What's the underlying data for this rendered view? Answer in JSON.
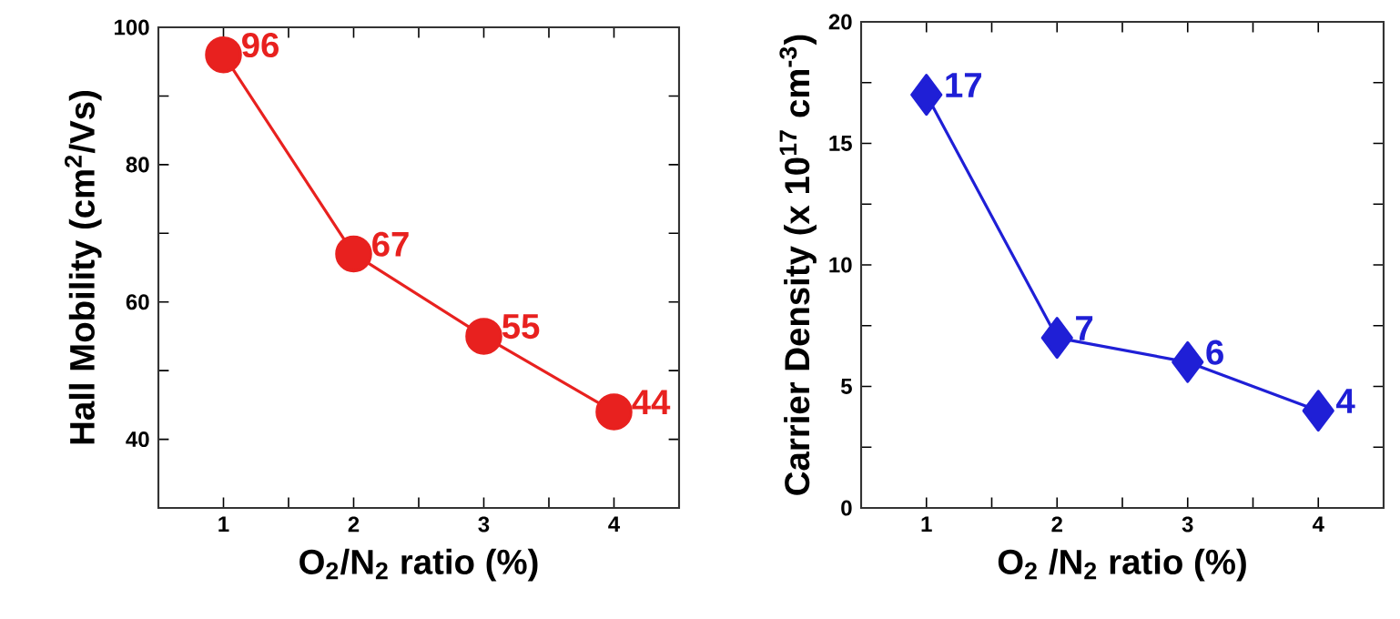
{
  "chart_data": [
    {
      "type": "line",
      "ylabel": "Hall Mobility (cm$^{2}$/Vs)",
      "xlabel": "O$_{2}$/N$_{2}$ ratio (%)",
      "x": [
        1,
        2,
        3,
        4
      ],
      "xlim": [
        0.5,
        4.5
      ],
      "xticks": [
        1,
        2,
        3,
        4,
        {
          "value": 1.5,
          "label": null
        },
        {
          "value": 2.5,
          "label": null
        },
        {
          "value": 3.5,
          "label": null
        }
      ],
      "ylim": [
        30,
        100
      ],
      "yticks": [
        40,
        60,
        80,
        100,
        {
          "value": 50,
          "label": null
        },
        {
          "value": 70,
          "label": null
        },
        {
          "value": 90,
          "label": null
        }
      ],
      "marker": "circle",
      "data_labels": true,
      "series": [
        {
          "color": "#e8211f",
          "values": [
            96,
            67,
            55,
            44
          ]
        }
      ]
    },
    {
      "type": "line",
      "ylabel": "Carrier Density (x 10$^{17}$ cm$^{-3}$)",
      "xlabel": "O$_{2}$ /N$_{2}$  ratio (%)",
      "x": [
        1,
        2,
        3,
        4
      ],
      "xlim": [
        0.5,
        4.5
      ],
      "xticks": [
        1,
        2,
        3,
        4,
        {
          "value": 1.5,
          "label": null
        },
        {
          "value": 2.5,
          "label": null
        },
        {
          "value": 3.5,
          "label": null
        }
      ],
      "ylim": [
        0,
        20
      ],
      "yticks": [
        0,
        5,
        10,
        15,
        20,
        {
          "value": 2.5,
          "label": null
        },
        {
          "value": 7.5,
          "label": null
        },
        {
          "value": 12.5,
          "label": null
        },
        {
          "value": 17.5,
          "label": null
        }
      ],
      "marker": "diamond",
      "data_labels": true,
      "series": [
        {
          "color": "#1f1fd6",
          "values": [
            17,
            7,
            6,
            4
          ]
        }
      ]
    }
  ]
}
